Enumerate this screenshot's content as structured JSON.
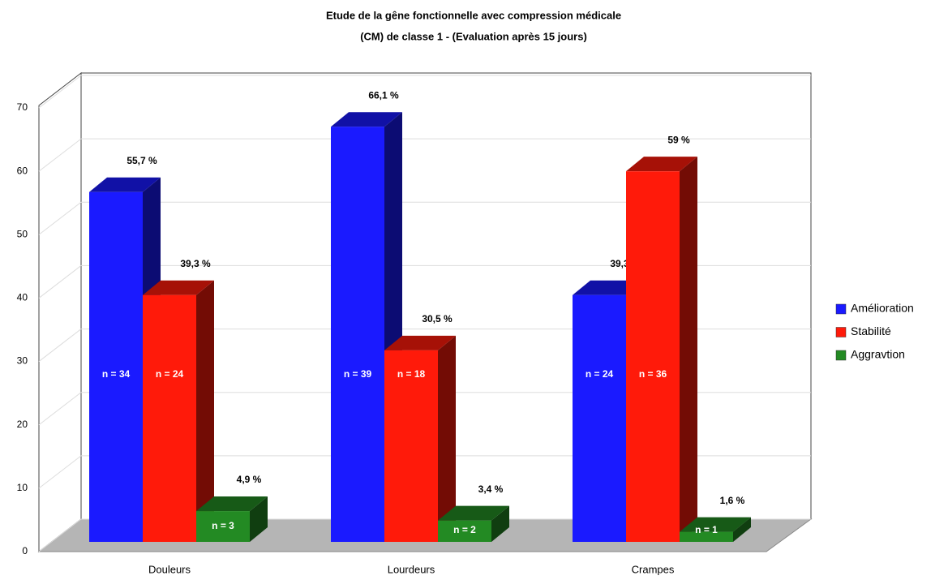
{
  "chart_data": {
    "type": "bar3d",
    "title": [
      "Etude de la gêne fonctionnelle avec compression médicale",
      "(CM) de classe 1 - (Evaluation après 15 jours)"
    ],
    "categories": [
      "Douleurs",
      "Lourdeurs",
      "Crampes"
    ],
    "series": [
      {
        "name": "Amélioration",
        "color": "#1a1aff",
        "values": [
          55.7,
          66.1,
          39.3
        ],
        "value_labels": [
          "55,7 %",
          "66,1 %",
          "39,3 %"
        ],
        "count_labels": [
          "n = 34",
          "n = 39",
          "n = 24"
        ]
      },
      {
        "name": "Stabilité",
        "color": "#ff1a0a",
        "values": [
          39.3,
          30.5,
          59
        ],
        "value_labels": [
          "39,3 %",
          "30,5 %",
          "59 %"
        ],
        "count_labels": [
          "n = 24",
          "n = 18",
          "n = 36"
        ]
      },
      {
        "name": "Aggravtion",
        "color": "#238a23",
        "values": [
          4.9,
          3.4,
          1.6
        ],
        "value_labels": [
          "4,9 %",
          "3,4 %",
          "1,6 %"
        ],
        "count_labels": [
          "n = 3",
          "n = 2",
          "n = 1"
        ]
      }
    ],
    "ylim": [
      0,
      70
    ],
    "yticks": [
      0,
      10,
      20,
      30,
      40,
      50,
      60,
      70
    ],
    "grid": true,
    "legend": "right"
  }
}
